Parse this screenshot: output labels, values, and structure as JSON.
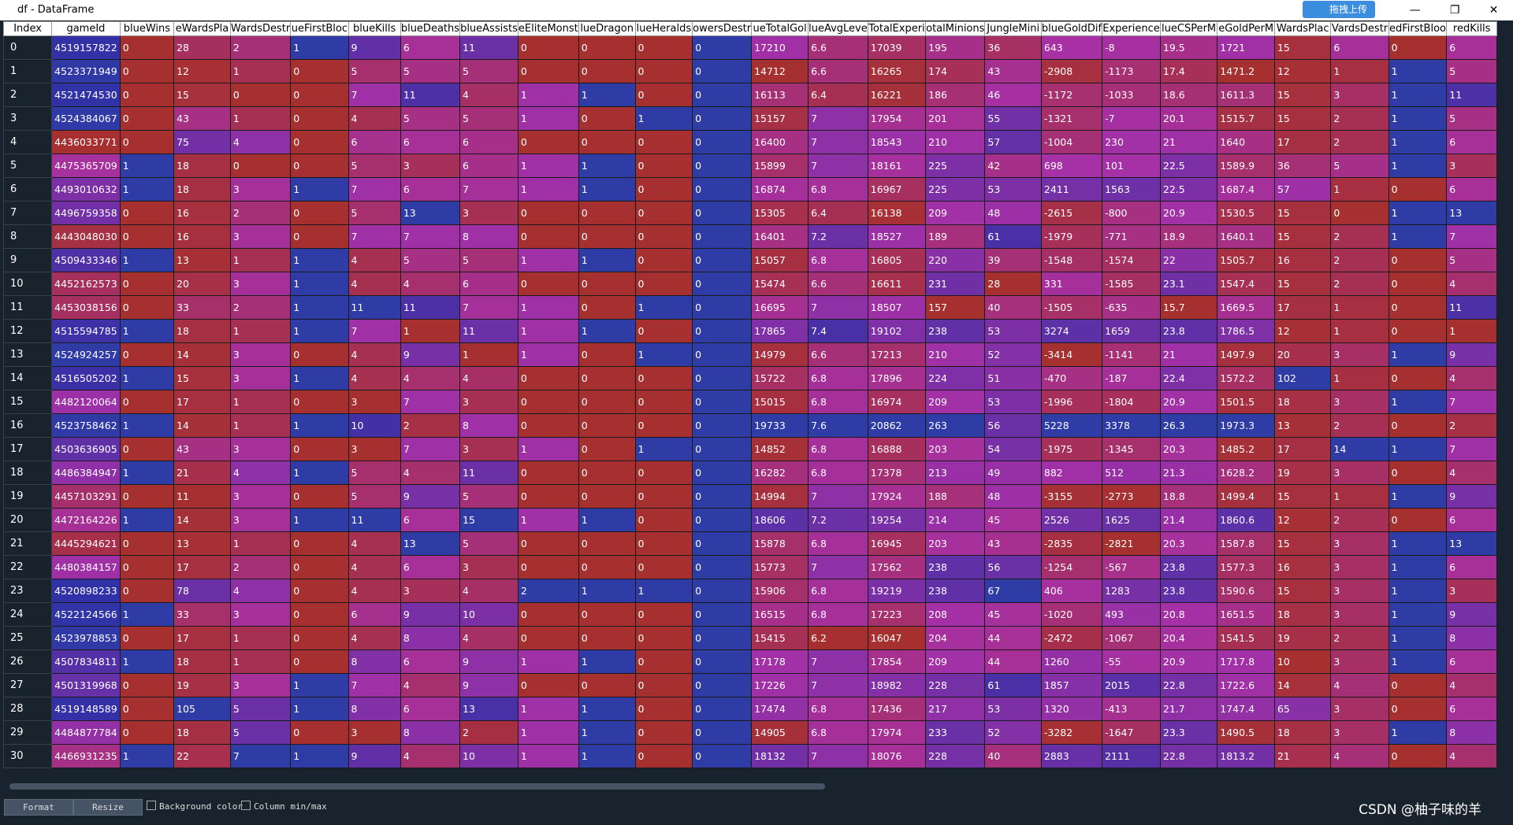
{
  "window_title": "df - DataFrame",
  "upload_label": "拖拽上传",
  "table": {
    "index_header": "Index",
    "columns": [
      "gameId",
      "blueWins",
      "eWardsPla",
      "WardsDestr",
      "ueFirstBloc",
      "blueKills",
      "blueDeaths",
      "blueAssists",
      "eEliteMonst",
      "lueDragon",
      "lueHeralds",
      "owersDestr",
      "ueTotalGol",
      "lueAvgLeve",
      "TotalExperi",
      "otalMinions",
      "JungleMini",
      "blueGoldDif",
      "Experience",
      "lueCSPerM",
      "eGoldPerM",
      "WardsPlac",
      "VardsDestr",
      "edFirstBloo",
      "redKills"
    ],
    "index": [
      0,
      1,
      2,
      3,
      4,
      5,
      6,
      7,
      8,
      9,
      10,
      11,
      12,
      13,
      14,
      15,
      16,
      17,
      18,
      19,
      20,
      21,
      22,
      23,
      24,
      25,
      26,
      27,
      28,
      29,
      30
    ],
    "rows": [
      [
        4519157822,
        0,
        28,
        2,
        1,
        9,
        6,
        11,
        0,
        0,
        0,
        0,
        17210,
        6.6,
        17039,
        195,
        36,
        643,
        -8,
        19.5,
        1721,
        15,
        6,
        0,
        6
      ],
      [
        4523371949,
        0,
        12,
        1,
        0,
        5,
        5,
        5,
        0,
        0,
        0,
        0,
        14712,
        6.6,
        16265,
        174,
        43,
        -2908,
        -1173,
        17.4,
        1471.2,
        12,
        1,
        1,
        5
      ],
      [
        4521474530,
        0,
        15,
        0,
        0,
        7,
        11,
        4,
        1,
        1,
        0,
        0,
        16113,
        6.4,
        16221,
        186,
        46,
        -1172,
        -1033,
        18.6,
        1611.3,
        15,
        3,
        1,
        11
      ],
      [
        4524384067,
        0,
        43,
        1,
        0,
        4,
        5,
        5,
        1,
        0,
        1,
        0,
        15157,
        7,
        17954,
        201,
        55,
        -1321,
        -7,
        20.1,
        1515.7,
        15,
        2,
        1,
        5
      ],
      [
        4436033771,
        0,
        75,
        4,
        0,
        6,
        6,
        6,
        0,
        0,
        0,
        0,
        16400,
        7,
        18543,
        210,
        57,
        -1004,
        230,
        21,
        1640,
        17,
        2,
        1,
        6
      ],
      [
        4475365709,
        1,
        18,
        0,
        0,
        5,
        3,
        6,
        1,
        1,
        0,
        0,
        15899,
        7,
        18161,
        225,
        42,
        698,
        101,
        22.5,
        1589.9,
        36,
        5,
        1,
        3
      ],
      [
        4493010632,
        1,
        18,
        3,
        1,
        7,
        6,
        7,
        1,
        1,
        0,
        0,
        16874,
        6.8,
        16967,
        225,
        53,
        2411,
        1563,
        22.5,
        1687.4,
        57,
        1,
        0,
        6
      ],
      [
        4496759358,
        0,
        16,
        2,
        0,
        5,
        13,
        3,
        0,
        0,
        0,
        0,
        15305,
        6.4,
        16138,
        209,
        48,
        -2615,
        -800,
        20.9,
        1530.5,
        15,
        0,
        1,
        13
      ],
      [
        4443048030,
        0,
        16,
        3,
        0,
        7,
        7,
        8,
        0,
        0,
        0,
        0,
        16401,
        7.2,
        18527,
        189,
        61,
        -1979,
        -771,
        18.9,
        1640.1,
        15,
        2,
        1,
        7
      ],
      [
        4509433346,
        1,
        13,
        1,
        1,
        4,
        5,
        5,
        1,
        1,
        0,
        0,
        15057,
        6.8,
        16805,
        220,
        39,
        -1548,
        -1574,
        22,
        1505.7,
        16,
        2,
        0,
        5
      ],
      [
        4452162573,
        0,
        20,
        3,
        1,
        4,
        4,
        6,
        0,
        0,
        0,
        0,
        15474,
        6.6,
        16611,
        231,
        28,
        331,
        -1585,
        23.1,
        1547.4,
        15,
        2,
        0,
        4
      ],
      [
        4453038156,
        0,
        33,
        2,
        1,
        11,
        11,
        7,
        1,
        0,
        1,
        0,
        16695,
        7,
        18507,
        157,
        40,
        -1505,
        -635,
        15.7,
        1669.5,
        17,
        1,
        0,
        11
      ],
      [
        4515594785,
        1,
        18,
        1,
        1,
        7,
        1,
        11,
        1,
        1,
        0,
        0,
        17865,
        7.4,
        19102,
        238,
        53,
        3274,
        1659,
        23.8,
        1786.5,
        12,
        1,
        0,
        1
      ],
      [
        4524924257,
        0,
        14,
        3,
        0,
        4,
        9,
        1,
        1,
        0,
        1,
        0,
        14979,
        6.6,
        17213,
        210,
        52,
        -3414,
        -1141,
        21,
        1497.9,
        20,
        3,
        1,
        9
      ],
      [
        4516505202,
        1,
        15,
        3,
        1,
        4,
        4,
        4,
        0,
        0,
        0,
        0,
        15722,
        6.8,
        17896,
        224,
        51,
        -470,
        -187,
        22.4,
        1572.2,
        102,
        1,
        0,
        4
      ],
      [
        4482120064,
        0,
        17,
        1,
        0,
        3,
        7,
        3,
        0,
        0,
        0,
        0,
        15015,
        6.8,
        16974,
        209,
        53,
        -1996,
        -1804,
        20.9,
        1501.5,
        18,
        3,
        1,
        7
      ],
      [
        4523758462,
        1,
        14,
        1,
        1,
        10,
        2,
        8,
        0,
        0,
        0,
        0,
        19733,
        7.6,
        20862,
        263,
        56,
        5228,
        3378,
        26.3,
        1973.3,
        13,
        2,
        0,
        2
      ],
      [
        4503636905,
        0,
        43,
        3,
        0,
        3,
        7,
        3,
        1,
        0,
        1,
        0,
        14852,
        6.8,
        16888,
        203,
        54,
        -1975,
        -1345,
        20.3,
        1485.2,
        17,
        14,
        1,
        7
      ],
      [
        4486384947,
        1,
        21,
        4,
        1,
        5,
        4,
        11,
        0,
        0,
        0,
        0,
        16282,
        6.8,
        17378,
        213,
        49,
        882,
        512,
        21.3,
        1628.2,
        19,
        3,
        0,
        4
      ],
      [
        4457103291,
        0,
        11,
        3,
        0,
        5,
        9,
        5,
        0,
        0,
        0,
        0,
        14994,
        7,
        17924,
        188,
        48,
        -3155,
        -2773,
        18.8,
        1499.4,
        15,
        1,
        1,
        9
      ],
      [
        4472164226,
        1,
        14,
        3,
        1,
        11,
        6,
        15,
        1,
        1,
        0,
        0,
        18606,
        7.2,
        19254,
        214,
        45,
        2526,
        1625,
        21.4,
        1860.6,
        12,
        2,
        0,
        6
      ],
      [
        4445294621,
        0,
        13,
        1,
        0,
        4,
        13,
        5,
        0,
        0,
        0,
        0,
        15878,
        6.8,
        16945,
        203,
        43,
        -2835,
        -2821,
        20.3,
        1587.8,
        15,
        3,
        1,
        13
      ],
      [
        4480384157,
        0,
        17,
        2,
        0,
        4,
        6,
        3,
        0,
        0,
        0,
        0,
        15773,
        7,
        17562,
        238,
        56,
        -1254,
        -567,
        23.8,
        1577.3,
        16,
        3,
        1,
        6
      ],
      [
        4520898233,
        0,
        78,
        4,
        0,
        4,
        3,
        4,
        2,
        1,
        1,
        0,
        15906,
        6.8,
        19219,
        238,
        67,
        406,
        1283,
        23.8,
        1590.6,
        15,
        3,
        1,
        3
      ],
      [
        4522124566,
        1,
        33,
        3,
        0,
        6,
        9,
        10,
        0,
        0,
        0,
        0,
        16515,
        6.8,
        17223,
        208,
        45,
        -1020,
        493,
        20.8,
        1651.5,
        18,
        3,
        1,
        9
      ],
      [
        4523978853,
        0,
        17,
        1,
        0,
        4,
        8,
        4,
        0,
        0,
        0,
        0,
        15415,
        6.2,
        16047,
        204,
        44,
        -2472,
        -1067,
        20.4,
        1541.5,
        19,
        2,
        1,
        8
      ],
      [
        4507834811,
        1,
        18,
        1,
        0,
        8,
        6,
        9,
        1,
        1,
        0,
        0,
        17178,
        7,
        17854,
        209,
        44,
        1260,
        -55,
        20.9,
        1717.8,
        10,
        3,
        1,
        6
      ],
      [
        4501319968,
        0,
        19,
        3,
        1,
        7,
        4,
        9,
        0,
        0,
        0,
        0,
        17226,
        7,
        18982,
        228,
        61,
        1857,
        2015,
        22.8,
        1722.6,
        14,
        4,
        0,
        4
      ],
      [
        4519148589,
        0,
        105,
        5,
        1,
        8,
        6,
        13,
        1,
        1,
        0,
        0,
        17474,
        6.8,
        17436,
        217,
        53,
        1320,
        -413,
        21.7,
        1747.4,
        65,
        3,
        0,
        6
      ],
      [
        4484877784,
        0,
        18,
        5,
        0,
        3,
        8,
        2,
        1,
        1,
        0,
        0,
        14905,
        6.8,
        17974,
        233,
        52,
        -3282,
        -1647,
        23.3,
        1490.5,
        18,
        3,
        1,
        8
      ],
      [
        4466931235,
        1,
        22,
        7,
        1,
        9,
        4,
        10,
        1,
        1,
        0,
        0,
        18132,
        7,
        18076,
        228,
        40,
        2883,
        2111,
        22.8,
        1813.2,
        21,
        4,
        0,
        4
      ]
    ]
  },
  "buttons": [
    "Format",
    "Resize"
  ],
  "checkboxes": [
    "Background color",
    "Column min/max"
  ],
  "watermark": "CSDN @柚子味的羊"
}
